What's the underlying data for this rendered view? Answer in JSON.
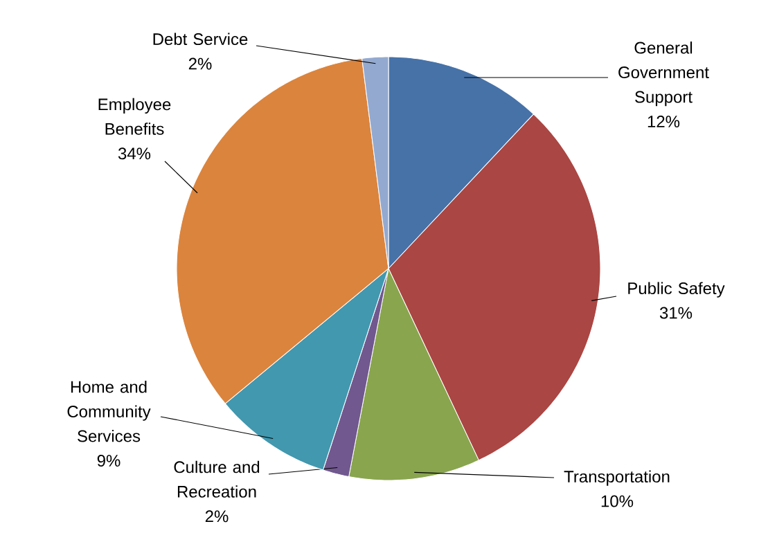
{
  "chart_data": {
    "type": "pie",
    "categories": [
      "General Government Support",
      "Public Safety",
      "Transportation",
      "Culture and Recreation",
      "Home and Community Services",
      "Employee Benefits",
      "Debt Service"
    ],
    "values": [
      12,
      31,
      10,
      2,
      9,
      34,
      2
    ],
    "value_labels": [
      "12%",
      "31%",
      "10%",
      "2%",
      "9%",
      "34%",
      "2%"
    ],
    "colors": [
      "#4672a8",
      "#aa4643",
      "#89a54e",
      "#71588f",
      "#4198af",
      "#db843d",
      "#93a9cf"
    ]
  }
}
